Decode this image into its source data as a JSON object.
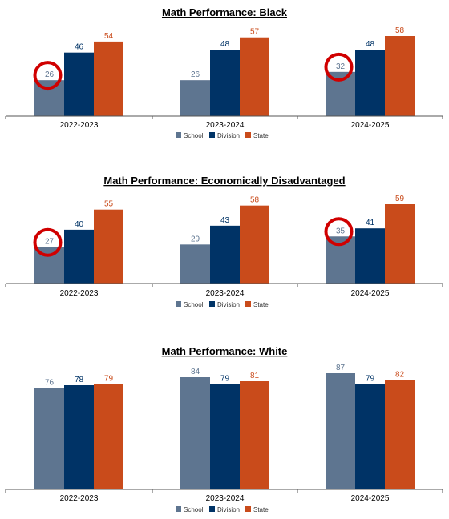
{
  "colors": {
    "school": "#5e7590",
    "division": "#003366",
    "state": "#c94b1b",
    "school_label": "#5e7590",
    "axis": "#555555",
    "highlight_circle": "#d00000"
  },
  "chart_data": [
    {
      "type": "bar",
      "title": "Math Performance: Black",
      "categories": [
        "2022-2023",
        "2023-2024",
        "2024-2025"
      ],
      "series": [
        {
          "name": "School",
          "values": [
            26,
            26,
            32
          ]
        },
        {
          "name": "Division",
          "values": [
            46,
            48,
            48
          ]
        },
        {
          "name": "State",
          "values": [
            54,
            57,
            58
          ]
        }
      ],
      "ylim": [
        0,
        58
      ],
      "legend": "bottom",
      "grid": false,
      "highlighted": [
        {
          "category": "2022-2023",
          "series": "School"
        },
        {
          "category": "2024-2025",
          "series": "School"
        }
      ]
    },
    {
      "type": "bar",
      "title": "Math Performance: Economically Disadvantaged",
      "categories": [
        "2022-2023",
        "2023-2024",
        "2024-2025"
      ],
      "series": [
        {
          "name": "School",
          "values": [
            27,
            29,
            35
          ]
        },
        {
          "name": "Division",
          "values": [
            40,
            43,
            41
          ]
        },
        {
          "name": "State",
          "values": [
            55,
            58,
            59
          ]
        }
      ],
      "ylim": [
        0,
        59
      ],
      "legend": "bottom",
      "grid": false,
      "highlighted": [
        {
          "category": "2022-2023",
          "series": "School"
        },
        {
          "category": "2024-2025",
          "series": "School"
        }
      ]
    },
    {
      "type": "bar",
      "title": "Math Performance: White",
      "categories": [
        "2022-2023",
        "2023-2024",
        "2024-2025"
      ],
      "series": [
        {
          "name": "School",
          "values": [
            76,
            84,
            87
          ]
        },
        {
          "name": "Division",
          "values": [
            78,
            79,
            79
          ]
        },
        {
          "name": "State",
          "values": [
            79,
            81,
            82
          ]
        }
      ],
      "ylim": [
        0,
        87
      ],
      "legend": "bottom",
      "grid": false,
      "highlighted": []
    }
  ]
}
